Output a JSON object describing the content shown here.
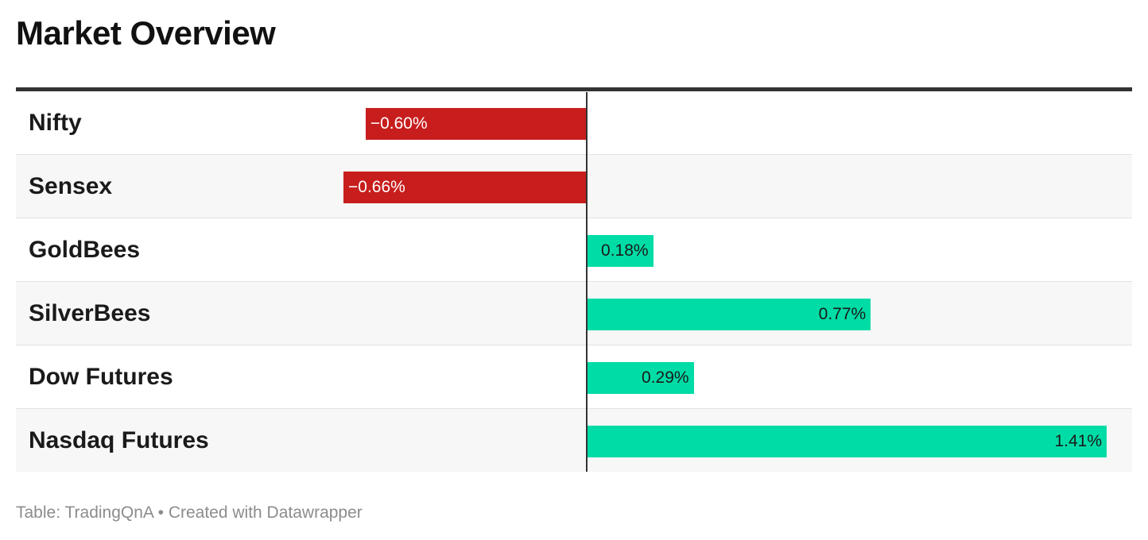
{
  "title": "Market Overview",
  "footer": {
    "source": "Table: TradingQnA",
    "separator": "•",
    "credit": "Created with Datawrapper"
  },
  "colors": {
    "negative": "#c71e1d",
    "positive": "#00dca6"
  },
  "chart_data": {
    "type": "bar",
    "orientation": "horizontal",
    "categories": [
      "Nifty",
      "Sensex",
      "GoldBees",
      "SilverBees",
      "Dow Futures",
      "Nasdaq Futures"
    ],
    "values": [
      -0.6,
      -0.66,
      0.18,
      0.77,
      0.29,
      1.41
    ],
    "value_labels": [
      "−0.60%",
      "−0.66%",
      "0.18%",
      "0.77%",
      "0.29%",
      "1.41%"
    ],
    "xlim": [
      -0.66,
      1.41
    ],
    "title": "Market Overview",
    "grid": false,
    "legend": "none"
  }
}
